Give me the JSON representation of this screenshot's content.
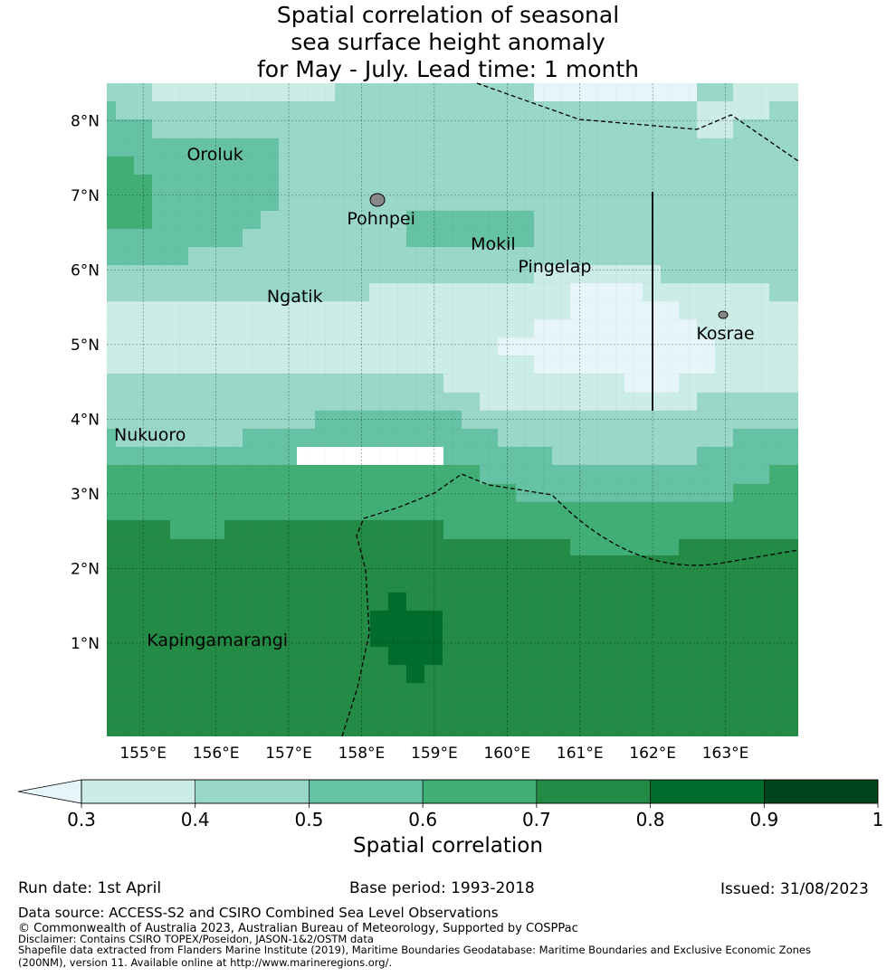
{
  "title": {
    "line1": "Spatial correlation of seasonal",
    "line2": "sea surface height anomaly",
    "line3": "for May - July. Lead time: 1 month"
  },
  "map": {
    "lon_range": [
      154.5,
      164.0
    ],
    "lat_range": [
      -0.25,
      8.5
    ],
    "lon_ticks": [
      "155°E",
      "156°E",
      "157°E",
      "158°E",
      "159°E",
      "160°E",
      "161°E",
      "162°E",
      "163°E"
    ],
    "lat_ticks": [
      "8°N",
      "7°N",
      "6°N",
      "5°N",
      "4°N",
      "3°N",
      "2°N",
      "1°N"
    ],
    "places": [
      {
        "name": "Oroluk",
        "lon": 155.6,
        "lat": 7.55
      },
      {
        "name": "Pohnpei",
        "lon": 157.8,
        "lat": 6.7
      },
      {
        "name": "Mokil",
        "lon": 159.5,
        "lat": 6.35
      },
      {
        "name": "Pingelap",
        "lon": 160.15,
        "lat": 6.05
      },
      {
        "name": "Ngatik",
        "lon": 156.7,
        "lat": 5.65
      },
      {
        "name": "Kosrae",
        "lon": 162.6,
        "lat": 5.15
      },
      {
        "name": "Nukuoro",
        "lon": 154.6,
        "lat": 3.8
      },
      {
        "name": "Kapingamarangi",
        "lon": 155.05,
        "lat": 1.05
      }
    ]
  },
  "colorbar": {
    "ticks": [
      "0.3",
      "0.4",
      "0.5",
      "0.6",
      "0.7",
      "0.8",
      "0.9",
      "1"
    ],
    "colors": [
      "#ccece6",
      "#99d8c9",
      "#66c2a4",
      "#41ae76",
      "#238b45",
      "#006d2c",
      "#00441b"
    ],
    "under_color": "#e5f5f9",
    "label": "Spatial correlation"
  },
  "footer": {
    "run_date": "Run date: 1st April",
    "base_period": "Base period: 1993-2018",
    "issued": "Issued: 31/08/2023",
    "data_source": "Data source: ACCESS-S2 and CSIRO Combined Sea Level Observations",
    "copyright": "© Commonwealth of Australia 2023, Australian Bureau of Meteorology, Supported by COSPPac",
    "disclaimer": "Disclaimer: Contains CSIRO TOPEX/Poseidon, JASON-1&2/OSTM data",
    "shapefile1": "Shapefile data extracted from Flanders Marine Institute (2019), Maritime Boundaries Geodatabase: Maritime Boundaries and Exclusive Economic Zones",
    "shapefile2": "(200NM), version 11. Available online at http://www.marineregions.org/."
  }
}
